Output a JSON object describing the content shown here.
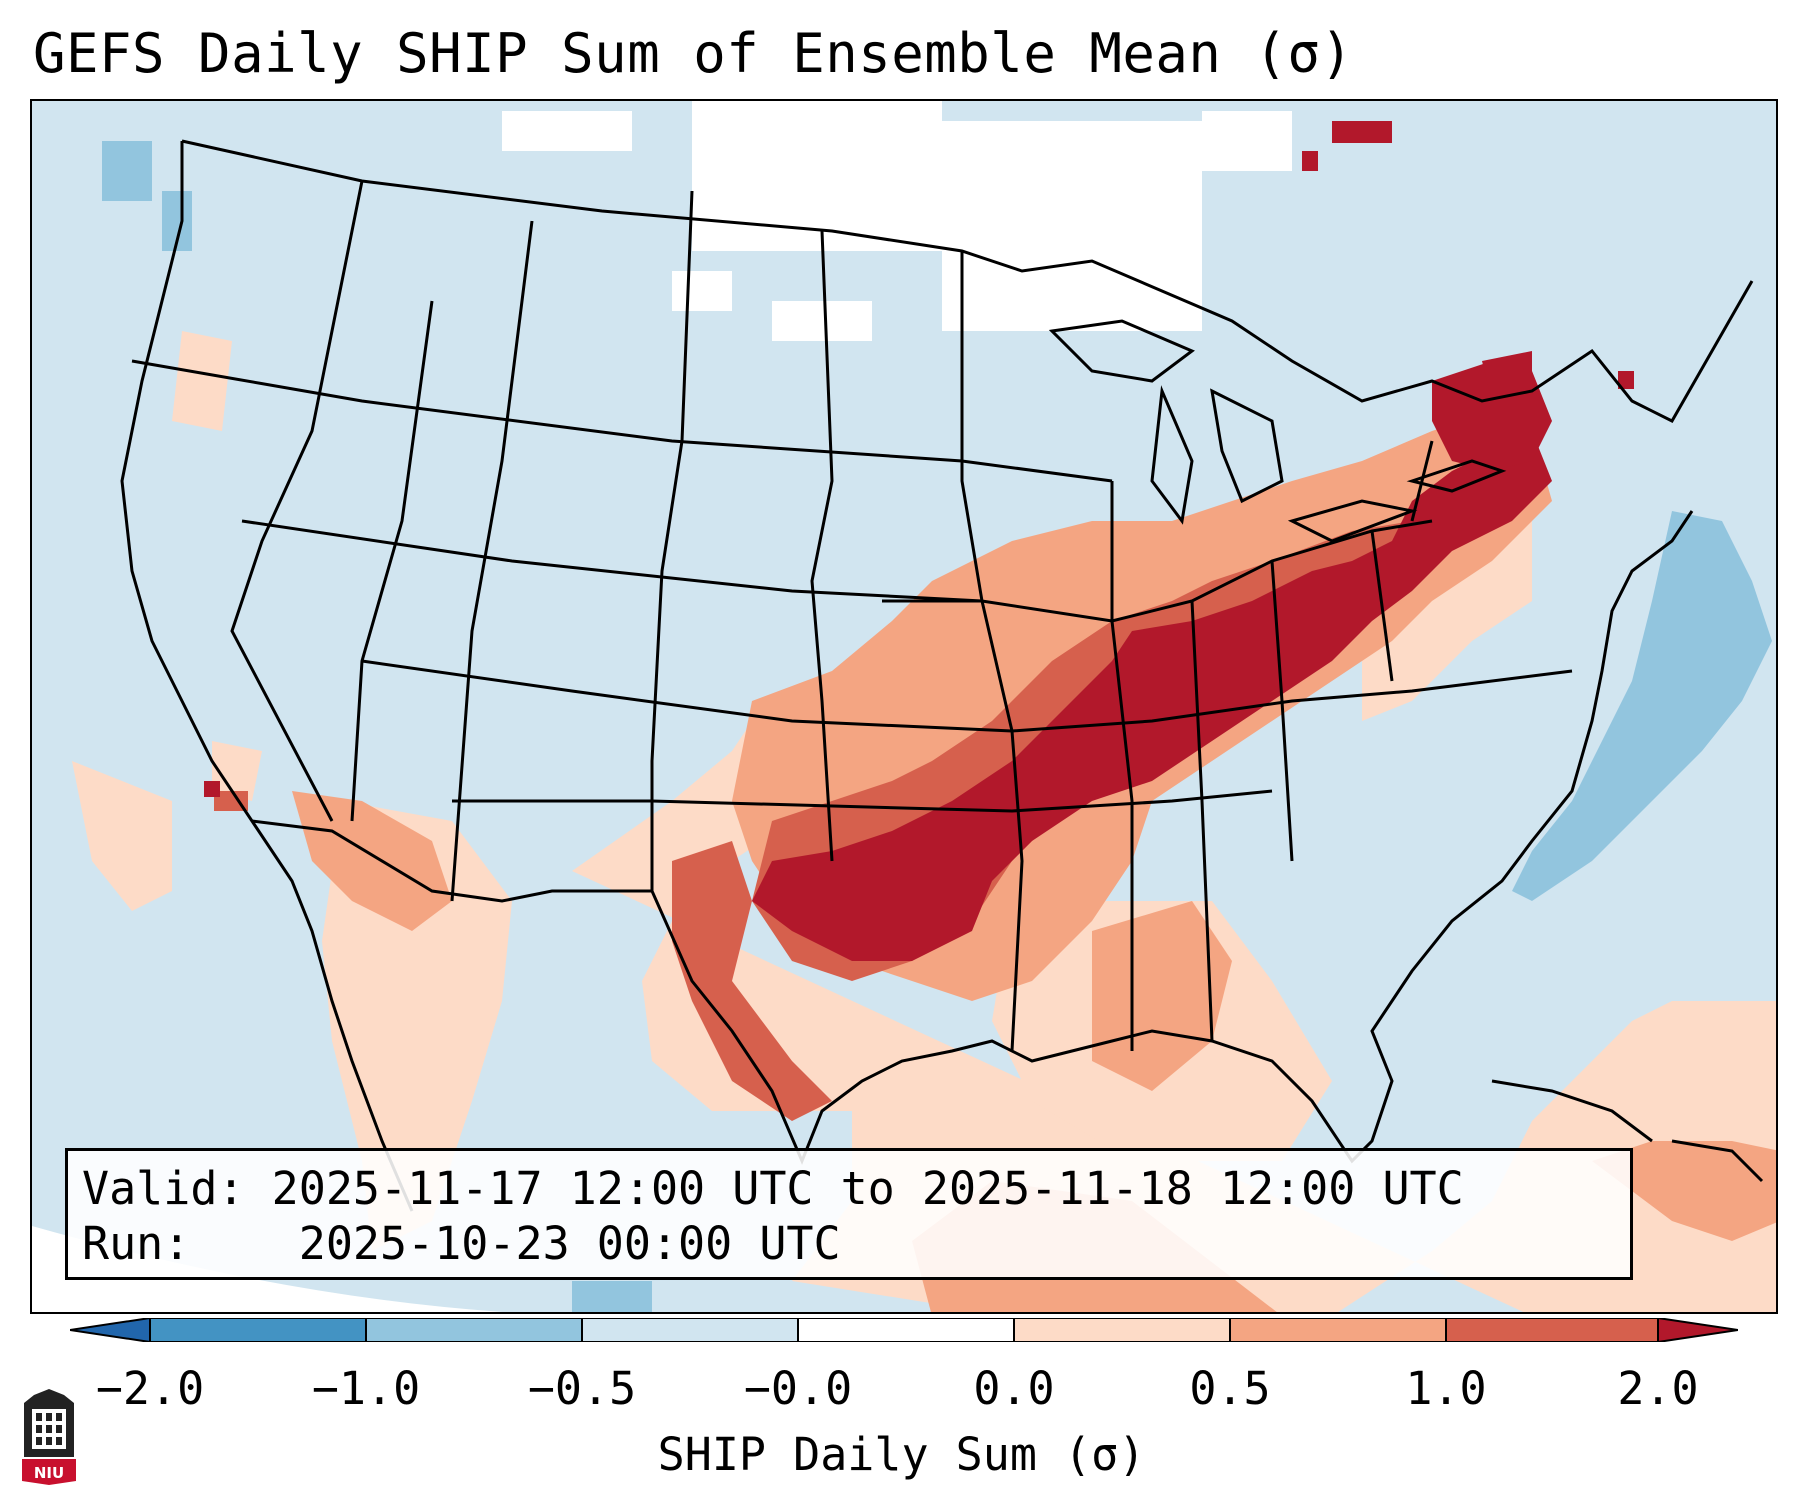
{
  "title": "GEFS Daily SHIP Sum of Ensemble Mean (σ)",
  "info": {
    "valid_label": "Valid:",
    "valid_value": "2025-11-17 12:00 UTC to 2025-11-18 12:00 UTC",
    "run_label": "Run:",
    "run_value": "2025-10-23 00:00 UTC"
  },
  "colorbar": {
    "label": "SHIP Daily Sum (σ)",
    "ticks": [
      "−2.0",
      "−1.0",
      "−0.5",
      "−0.0",
      "0.0",
      "0.5",
      "1.0",
      "2.0"
    ],
    "colors": [
      "#2166ac",
      "#4393c3",
      "#92c5de",
      "#d1e5f0",
      "#ffffff",
      "#fddbc7",
      "#f4a582",
      "#d6604d",
      "#b2182b"
    ]
  },
  "logo": {
    "text": "NIU",
    "color": "#c8102e"
  }
}
